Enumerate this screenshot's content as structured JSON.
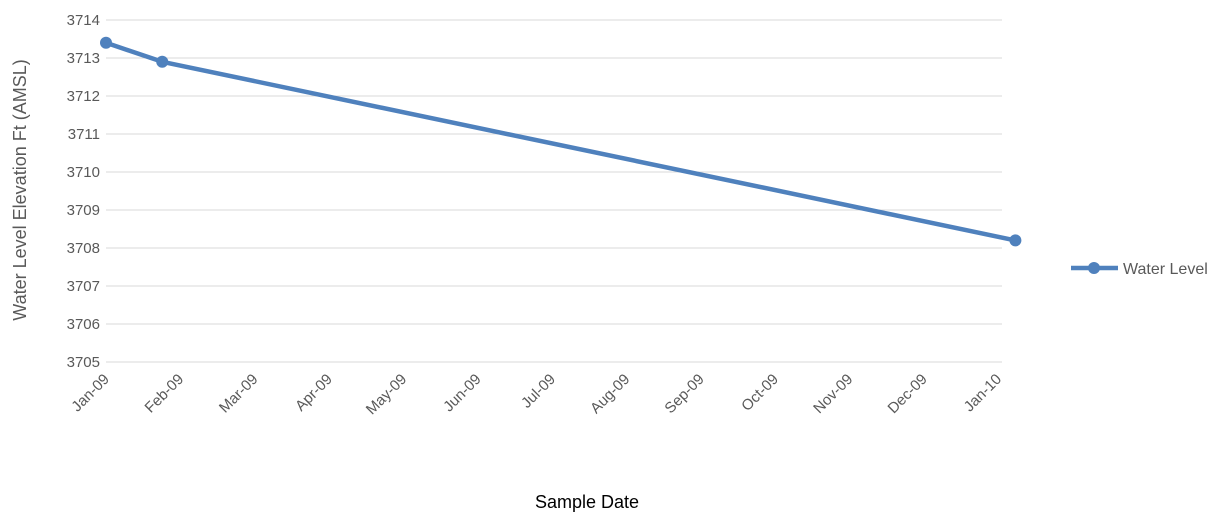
{
  "chart_data": {
    "type": "line",
    "xlabel": "Sample Date",
    "ylabel": "Water Level Elevation Ft (AMSL)",
    "ylim": [
      3705,
      3714
    ],
    "yticks": [
      3705,
      3706,
      3707,
      3708,
      3709,
      3710,
      3711,
      3712,
      3713,
      3714
    ],
    "xticks": [
      "Jan-09",
      "Feb-09",
      "Mar-09",
      "Apr-09",
      "May-09",
      "Jun-09",
      "Jul-09",
      "Aug-09",
      "Sep-09",
      "Oct-09",
      "Nov-09",
      "Dec-09",
      "Jan-10"
    ],
    "grid": "horizontal",
    "legend_position": "right",
    "series": [
      {
        "name": "Water Level",
        "color": "#4f81bd",
        "points": [
          {
            "x": "2009-01-01",
            "y": 3713.4
          },
          {
            "x": "2009-01-24",
            "y": 3712.9
          },
          {
            "x": "2010-01-08",
            "y": 3708.2
          }
        ]
      }
    ]
  }
}
